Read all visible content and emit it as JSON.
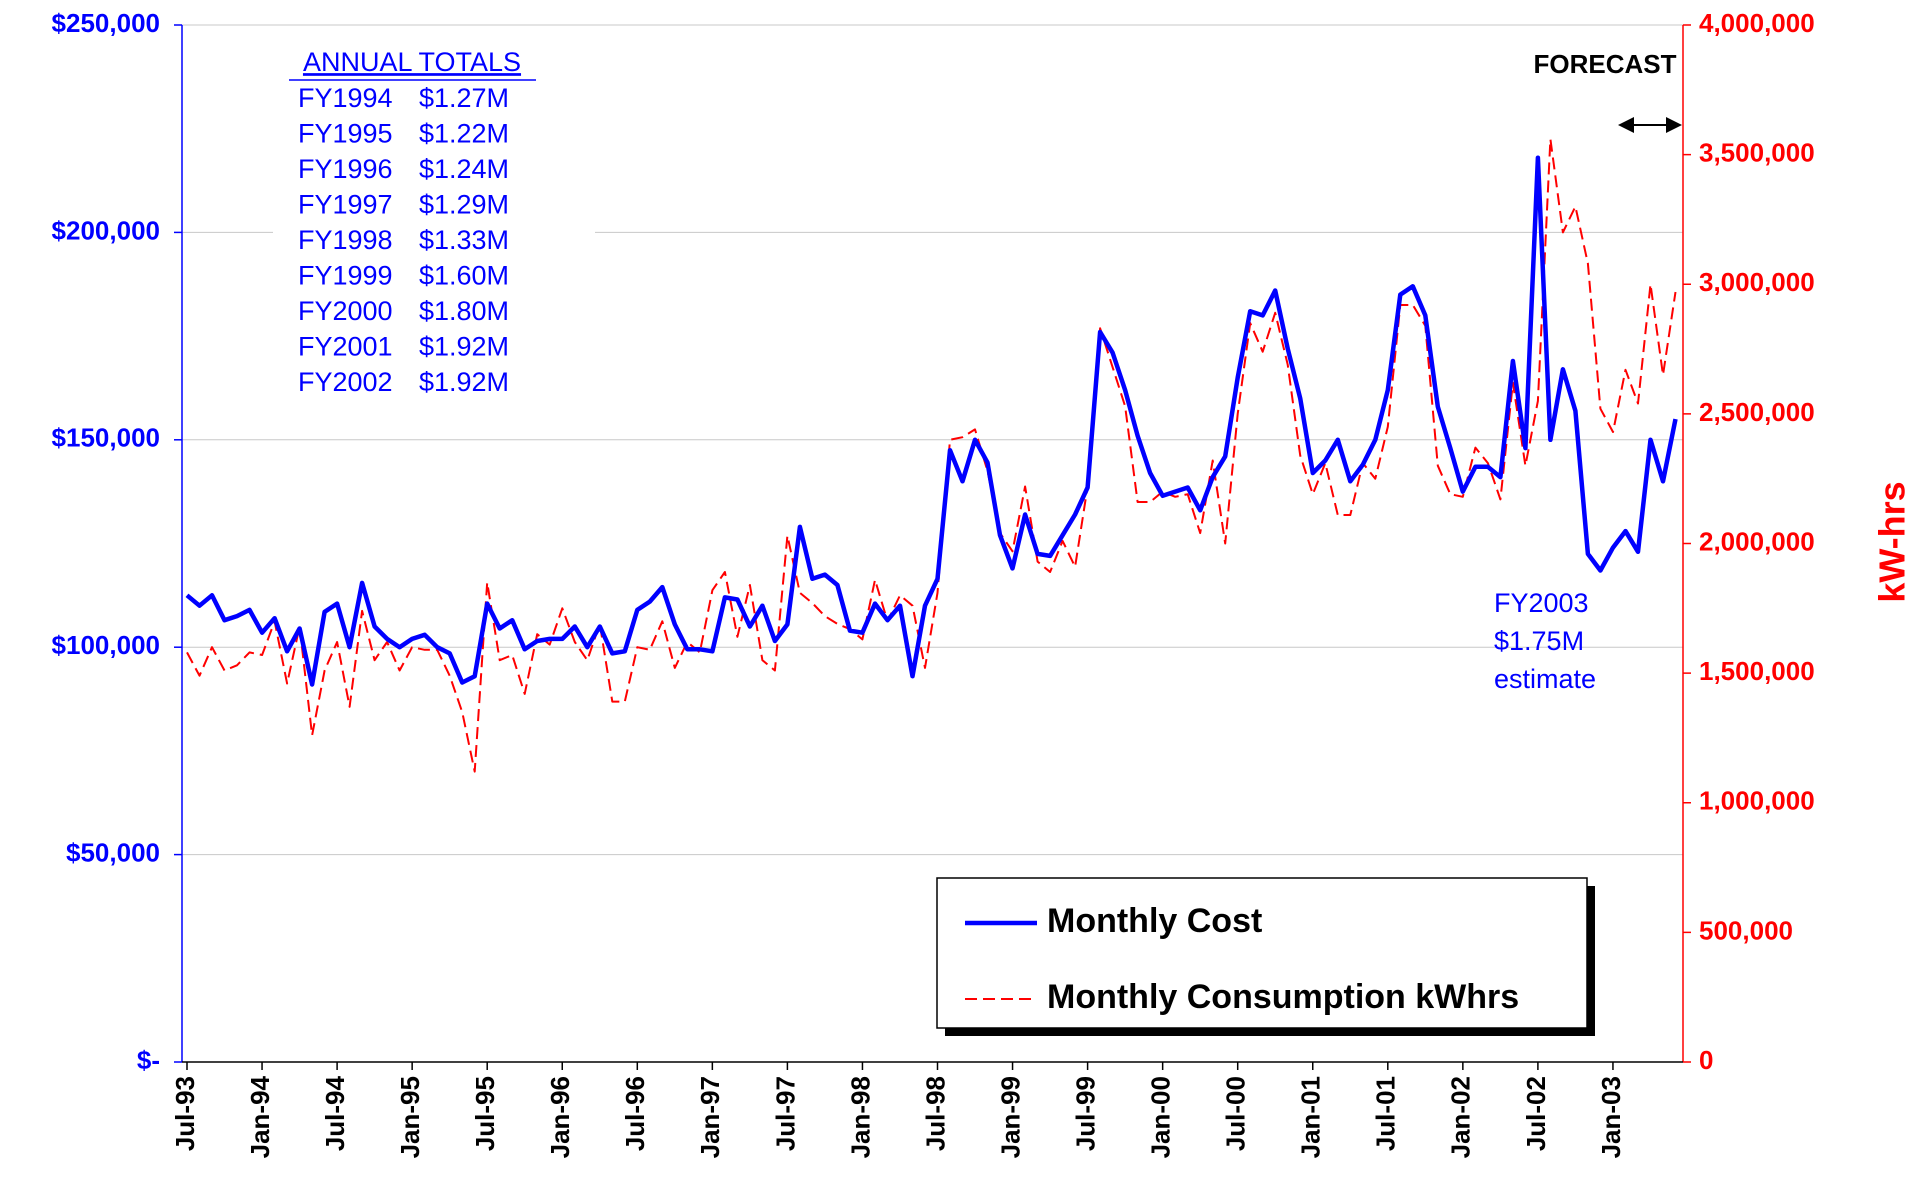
{
  "chart_data": {
    "type": "line",
    "y2label": "kW-hrs",
    "categories": [
      "Jul-93",
      null,
      null,
      null,
      null,
      null,
      "Jan-94",
      null,
      null,
      null,
      null,
      null,
      "Jul-94",
      null,
      null,
      null,
      null,
      null,
      "Jan-95",
      null,
      null,
      null,
      null,
      null,
      "Jul-95",
      null,
      null,
      null,
      null,
      null,
      "Jan-96",
      null,
      null,
      null,
      null,
      null,
      "Jul-96",
      null,
      null,
      null,
      null,
      null,
      "Jan-97",
      null,
      null,
      null,
      null,
      null,
      "Jul-97",
      null,
      null,
      null,
      null,
      null,
      "Jan-98",
      null,
      null,
      null,
      null,
      null,
      "Jul-98",
      null,
      null,
      null,
      null,
      null,
      "Jan-99",
      null,
      null,
      null,
      null,
      null,
      "Jul-99",
      null,
      null,
      null,
      null,
      null,
      "Jan-00",
      null,
      null,
      null,
      null,
      null,
      "Jul-00",
      null,
      null,
      null,
      null,
      null,
      "Jan-01",
      null,
      null,
      null,
      null,
      null,
      "Jul-01",
      null,
      null,
      null,
      null,
      null,
      "Jan-02",
      null,
      null,
      null,
      null,
      null,
      "Jul-02",
      null,
      null,
      null,
      null,
      null,
      "Jan-03",
      null,
      null,
      null,
      null,
      null
    ],
    "series": [
      {
        "name": "Monthly Cost",
        "color": "#0000ff",
        "values": [
          112500,
          110000,
          112500,
          106500,
          107500,
          109000,
          103500,
          107000,
          99000,
          104500,
          91000,
          108500,
          110500,
          100000,
          115500,
          105000,
          102000,
          100000,
          102000,
          103000,
          100000,
          98500,
          91500,
          93000,
          110500,
          104500,
          106500,
          99500,
          101500,
          102000,
          102000,
          105000,
          100000,
          105000,
          98500,
          99000,
          109000,
          111000,
          114500,
          105500,
          99500,
          99500,
          99000,
          112000,
          111500,
          105000,
          110000,
          101500,
          105500,
          129000,
          116500,
          117500,
          115000,
          104000,
          103500,
          110500,
          106500,
          110000,
          93000,
          110000,
          116500,
          147500,
          140000,
          150000,
          144500,
          127000,
          119000,
          132000,
          122500,
          122000,
          127000,
          132000,
          138500,
          176000,
          171000,
          162000,
          151000,
          142000,
          136500,
          137500,
          138500,
          133000,
          141000,
          146000,
          165000,
          181000,
          180000,
          186000,
          172000,
          160000,
          142000,
          145000,
          150000,
          140000,
          144000,
          150000,
          162000,
          185000,
          187000,
          180000,
          158000,
          148000,
          137500,
          143500,
          143500,
          141000,
          169000,
          148000,
          218000,
          150000,
          167000,
          157000,
          122500,
          118500,
          124000,
          128000,
          123000,
          150000,
          140000,
          155000
        ]
      },
      {
        "name": "Monthly Consumption kWhrs",
        "color": "#ff0000",
        "axis": "y2",
        "dashed": true,
        "values": [
          1580000,
          1490000,
          1600000,
          1510000,
          1530000,
          1580000,
          1570000,
          1700000,
          1460000,
          1680000,
          1260000,
          1510000,
          1620000,
          1370000,
          1740000,
          1550000,
          1620000,
          1510000,
          1600000,
          1590000,
          1590000,
          1490000,
          1350000,
          1120000,
          1850000,
          1550000,
          1570000,
          1420000,
          1650000,
          1610000,
          1750000,
          1620000,
          1550000,
          1690000,
          1390000,
          1390000,
          1600000,
          1590000,
          1700000,
          1520000,
          1620000,
          1580000,
          1820000,
          1890000,
          1640000,
          1840000,
          1550000,
          1510000,
          2030000,
          1810000,
          1770000,
          1720000,
          1690000,
          1670000,
          1630000,
          1860000,
          1700000,
          1800000,
          1760000,
          1520000,
          1810000,
          2400000,
          2410000,
          2440000,
          2280000,
          2040000,
          1970000,
          2220000,
          1930000,
          1890000,
          2010000,
          1910000,
          2220000,
          2830000,
          2680000,
          2530000,
          2160000,
          2160000,
          2200000,
          2180000,
          2190000,
          2040000,
          2320000,
          2000000,
          2500000,
          2850000,
          2740000,
          2890000,
          2690000,
          2340000,
          2190000,
          2310000,
          2110000,
          2110000,
          2310000,
          2250000,
          2450000,
          2920000,
          2920000,
          2840000,
          2300000,
          2190000,
          2180000,
          2370000,
          2310000,
          2170000,
          2620000,
          2300000,
          2550000,
          3560000,
          3200000,
          3300000,
          3080000,
          2520000,
          2430000,
          2670000,
          2540000,
          3000000,
          2650000,
          2970000
        ]
      }
    ],
    "ylim": [
      0,
      250000
    ],
    "yticks": [
      {
        "value": 0,
        "label": "$-"
      },
      {
        "value": 50000,
        "label": "$50,000"
      },
      {
        "value": 100000,
        "label": "$100,000"
      },
      {
        "value": 150000,
        "label": "$150,000"
      },
      {
        "value": 200000,
        "label": "$200,000"
      },
      {
        "value": 250000,
        "label": "$250,000"
      }
    ],
    "y2lim": [
      0,
      4000000
    ],
    "y2ticks": [
      0,
      {
        "value": 500000,
        "label": "500,000"
      },
      {
        "value": 1000000,
        "label": "1,000,000"
      },
      {
        "value": 1500000,
        "label": "1,500,000"
      },
      {
        "value": 2000000,
        "label": "2,000,000"
      },
      {
        "value": 2500000,
        "label": "2,500,000"
      },
      {
        "value": 3000000,
        "label": "3,000,000"
      },
      {
        "value": 3500000,
        "label": "3,500,000"
      },
      {
        "value": 4000000,
        "label": "4,000,000"
      }
    ],
    "grid": true,
    "legend": "lower right",
    "annual_totals": {
      "title": "ANNUAL TOTALS",
      "rows": [
        [
          "FY1994",
          "$1.27M"
        ],
        [
          "FY1995",
          "$1.22M"
        ],
        [
          "FY1996",
          "$1.24M"
        ],
        [
          "FY1997",
          "$1.29M"
        ],
        [
          "FY1998",
          "$1.33M"
        ],
        [
          "FY1999",
          "$1.60M"
        ],
        [
          "FY2000",
          "$1.80M"
        ],
        [
          "FY2001",
          "$1.92M"
        ],
        [
          "FY2002",
          "$1.92M"
        ]
      ]
    },
    "forecast_label": "FORECAST",
    "estimate_note": [
      "FY2003",
      "$1.75M",
      "estimate"
    ]
  }
}
